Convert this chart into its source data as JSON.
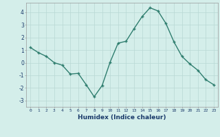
{
  "x": [
    0,
    1,
    2,
    3,
    4,
    5,
    6,
    7,
    8,
    9,
    10,
    11,
    12,
    13,
    14,
    15,
    16,
    17,
    18,
    19,
    20,
    21,
    22,
    23
  ],
  "y": [
    1.2,
    0.8,
    0.5,
    0.0,
    -0.2,
    -0.9,
    -0.85,
    -1.75,
    -2.7,
    -1.8,
    0.05,
    1.55,
    1.7,
    2.7,
    3.65,
    4.35,
    4.1,
    3.1,
    1.65,
    0.5,
    -0.1,
    -0.6,
    -1.35,
    -1.75
  ],
  "line_color": "#2e7d6e",
  "marker": "+",
  "marker_size": 3.5,
  "line_width": 1.0,
  "bg_color": "#d4eeea",
  "grid_color": "#b8d8d4",
  "xlabel": "Humidex (Indice chaleur)",
  "xlabel_fontsize": 6.5,
  "xlabel_color": "#1a3a6a",
  "ytick_labels": [
    "-3",
    "-2",
    "-1",
    "0",
    "1",
    "2",
    "3",
    "4"
  ],
  "ytick_values": [
    -3,
    -2,
    -1,
    0,
    1,
    2,
    3,
    4
  ],
  "ylim": [
    -3.5,
    4.75
  ],
  "xlim": [
    -0.5,
    23.5
  ],
  "xtick_fontsize": 4.5,
  "ytick_fontsize": 5.5,
  "tick_color": "#1a3a6a"
}
